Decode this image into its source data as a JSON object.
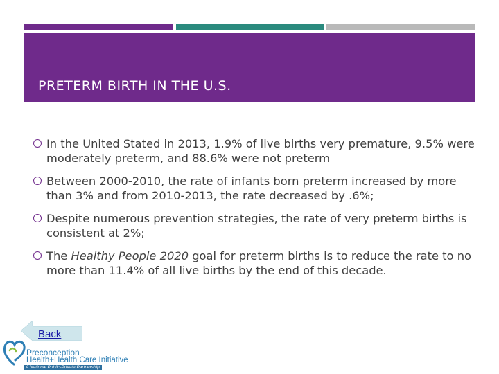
{
  "colors": {
    "accent_purple": "#6f2a8b",
    "accent_teal": "#2a8a7e",
    "accent_gray": "#b9b9b9",
    "body_text": "#404040"
  },
  "slide": {
    "title": "PRETERM BIRTH IN THE U.S.",
    "bullets": [
      {
        "pre": "In the United Stated in 2013, 1.9% of live births very premature, 9.5% were moderately preterm, and 88.6% were not preterm",
        "emph": "",
        "post": ""
      },
      {
        "pre": "Between 2000-2010, the rate of infants born preterm increased by more than 3% and  from 2010-2013, the rate decreased by .6%;",
        "emph": "",
        "post": ""
      },
      {
        "pre": "Despite numerous prevention strategies, the rate of very preterm births is consistent at 2%;",
        "emph": "",
        "post": ""
      },
      {
        "pre": "The ",
        "emph": "Healthy People 2020",
        "post": " goal for preterm births  is to reduce the rate to no more than 11.4% of all live births by the end of this decade."
      }
    ]
  },
  "nav": {
    "back_label": "Back"
  },
  "logo": {
    "icon": "heart-logo-icon",
    "line1": "Preconception",
    "line2": "Health+Health Care Initiative",
    "tagline": "A National Public-Private Partnership"
  }
}
